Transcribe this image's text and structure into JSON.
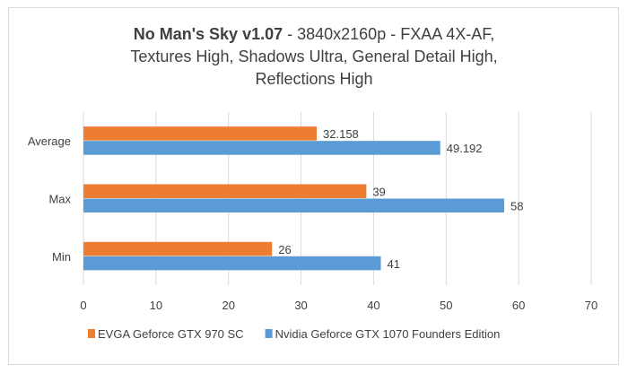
{
  "chart_data": {
    "type": "bar",
    "orientation": "horizontal",
    "title_bold": "No Man's Sky v1.07",
    "title_rest": " - 3840x2160p - FXAA 4X-AF,",
    "title_line2": "Textures High, Shadows Ultra, General Detail High,",
    "title_line3": "Reflections High",
    "categories": [
      "Average",
      "Max",
      "Min"
    ],
    "series": [
      {
        "name": "EVGA Geforce GTX 970 SC",
        "color": "#ed7d31",
        "values": [
          32.158,
          39,
          26
        ],
        "labels": [
          "32.158",
          "39",
          "26"
        ]
      },
      {
        "name": "Nvidia Geforce GTX 1070 Founders Edition",
        "color": "#5b9bd5",
        "values": [
          49.192,
          58,
          41
        ],
        "labels": [
          "49.192",
          "58",
          "41"
        ]
      }
    ],
    "xlim": [
      0,
      70
    ],
    "xticks": [
      "0",
      "10",
      "20",
      "30",
      "40",
      "50",
      "60",
      "70"
    ],
    "grid": true,
    "legend": "bottom"
  }
}
